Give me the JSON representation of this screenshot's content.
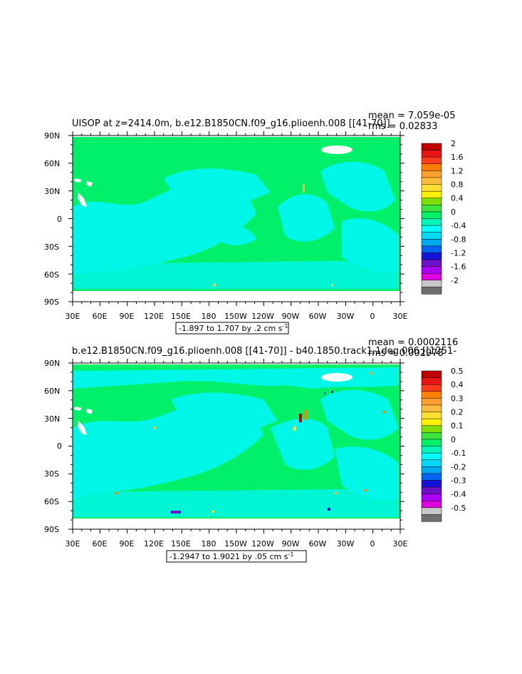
{
  "panels": [
    {
      "title": "UISOP at z=2414.0m, b.e12.B1850CN.f09_g16.plioenh.008 [[41-70]]",
      "mean_text": "mean = 7.059e-05",
      "rms_text": "rms = 0.02833",
      "range_text": "-1.897 to 1.707 by .2 cm s",
      "range_sup": "-1",
      "colorbar_labels": [
        "2",
        "1.6",
        "1.2",
        "0.8",
        "0.4",
        "0",
        "-0.4",
        "-0.8",
        "-1.2",
        "-1.6",
        "-2"
      ]
    },
    {
      "title": "b.e12.B1850CN.f09_g16.plioenh.008 [[41-70]] - b40.1850.track1.1deg.006 [[1251-",
      "mean_text": "mean = 0.0002116",
      "rms_text": "rms = 0.002978",
      "range_text": "-1.2947 to 1.9021 by .05 cm s",
      "range_sup": "-1",
      "colorbar_labels": [
        "0.5",
        "0.4",
        "0.3",
        "0.2",
        "0.1",
        "0",
        "-0.1",
        "-0.2",
        "-0.3",
        "-0.4",
        "-0.5"
      ]
    }
  ],
  "lat_labels": [
    "90N",
    "60N",
    "30N",
    "0",
    "30S",
    "60S",
    "90S"
  ],
  "lon_labels": [
    "30E",
    "60E",
    "90E",
    "120E",
    "150E",
    "180",
    "150W",
    "120W",
    "90W",
    "60W",
    "30W",
    "0",
    "30E"
  ],
  "colorbar_colors": [
    "#c00000",
    "#e81414",
    "#ff3c1e",
    "#ff7f00",
    "#ff9f2e",
    "#ffbe3c",
    "#ffe030",
    "#fff200",
    "#7fe000",
    "#3ce63c",
    "#00f06a",
    "#00f6b4",
    "#00ffff",
    "#00d8f4",
    "#00a8f0",
    "#0064f0",
    "#1414d8",
    "#6e10c8",
    "#aa00ff",
    "#e000e0",
    "#c8c8c8",
    "#6e6e6e"
  ],
  "map_colors": {
    "background": "#00f06a",
    "negative": "#00f6e6",
    "land_mask": "#ffffff"
  }
}
